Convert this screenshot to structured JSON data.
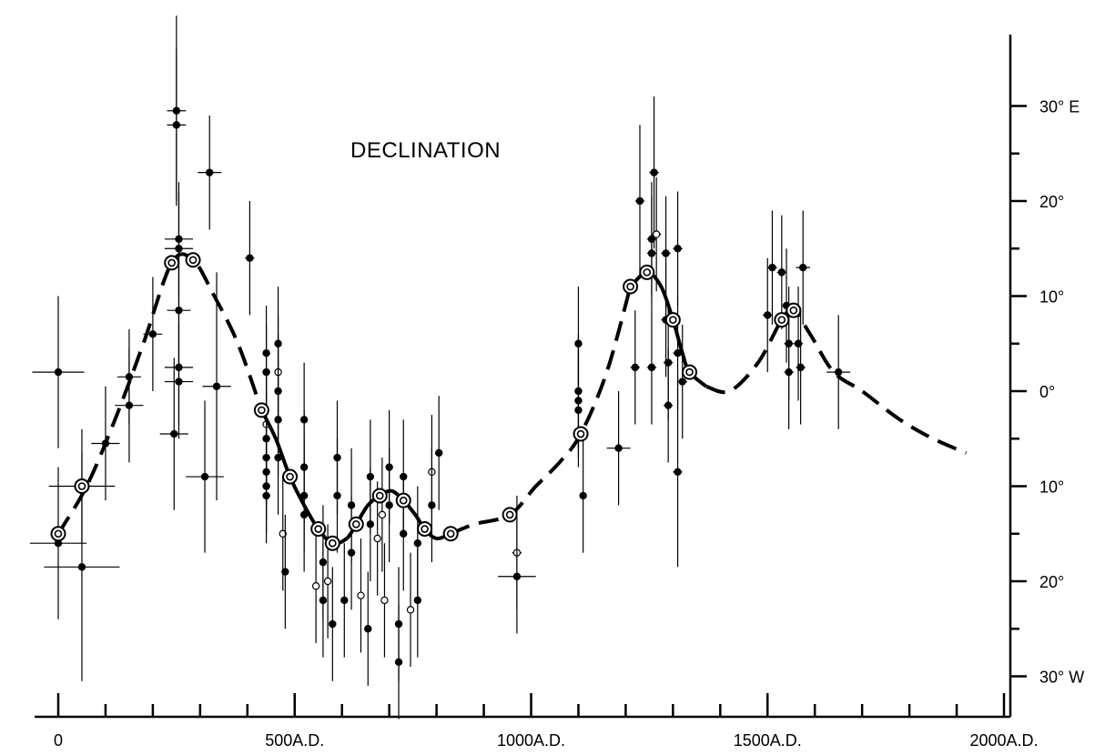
{
  "chart_data": {
    "type": "scatter",
    "title": "DECLINATION",
    "x_ticks": [
      {
        "value": 0,
        "label": "0"
      },
      {
        "value": 500,
        "label": "500A.D."
      },
      {
        "value": 1000,
        "label": "1000A.D."
      },
      {
        "value": 1500,
        "label": "1500A.D."
      },
      {
        "value": 2000,
        "label": "2000A.D."
      }
    ],
    "y_ticks": [
      {
        "value": 30,
        "label": "30° E"
      },
      {
        "value": 20,
        "label": "20°"
      },
      {
        "value": 10,
        "label": "10°"
      },
      {
        "value": 0,
        "label": "0°"
      },
      {
        "value": -10,
        "label": "10°"
      },
      {
        "value": -20,
        "label": "20°"
      },
      {
        "value": -30,
        "label": "30° W"
      }
    ],
    "xlim": [
      0,
      2000
    ],
    "ylim": [
      -32,
      40
    ],
    "axis_position": "right",
    "grid": false,
    "mean_points": [
      {
        "x": 0,
        "y": -15
      },
      {
        "x": 50,
        "y": -10
      },
      {
        "x": 240,
        "y": 13.5
      },
      {
        "x": 285,
        "y": 13.8
      },
      {
        "x": 430,
        "y": -2
      },
      {
        "x": 490,
        "y": -9
      },
      {
        "x": 550,
        "y": -14.5
      },
      {
        "x": 580,
        "y": -16
      },
      {
        "x": 630,
        "y": -14
      },
      {
        "x": 680,
        "y": -11
      },
      {
        "x": 730,
        "y": -11.5
      },
      {
        "x": 775,
        "y": -14.5
      },
      {
        "x": 830,
        "y": -15
      },
      {
        "x": 955,
        "y": -13
      },
      {
        "x": 1105,
        "y": -4.5
      },
      {
        "x": 1210,
        "y": 11
      },
      {
        "x": 1245,
        "y": 12.5
      },
      {
        "x": 1300,
        "y": 7.5
      },
      {
        "x": 1335,
        "y": 2
      },
      {
        "x": 1530,
        "y": 7.5
      },
      {
        "x": 1555,
        "y": 8.5
      }
    ],
    "curve_segments": [
      {
        "style": "dashed",
        "points": [
          [
            0,
            -15
          ],
          [
            60,
            -10
          ],
          [
            120,
            -3
          ],
          [
            180,
            5
          ],
          [
            240,
            13.5
          ],
          [
            285,
            13.8
          ],
          [
            330,
            10
          ],
          [
            380,
            5
          ],
          [
            430,
            -2
          ]
        ]
      },
      {
        "style": "solid",
        "points": [
          [
            430,
            -2
          ],
          [
            460,
            -5
          ],
          [
            490,
            -9
          ],
          [
            520,
            -12
          ],
          [
            550,
            -14.5
          ],
          [
            580,
            -16
          ],
          [
            610,
            -15.5
          ],
          [
            630,
            -14
          ],
          [
            655,
            -12
          ],
          [
            680,
            -11
          ],
          [
            705,
            -10.5
          ],
          [
            730,
            -11.5
          ],
          [
            755,
            -13
          ],
          [
            775,
            -14.5
          ],
          [
            800,
            -15.5
          ],
          [
            830,
            -15
          ]
        ]
      },
      {
        "style": "dashed",
        "points": [
          [
            830,
            -15
          ],
          [
            880,
            -14
          ],
          [
            955,
            -13
          ],
          [
            1010,
            -10
          ],
          [
            1060,
            -7.5
          ],
          [
            1105,
            -4.5
          ],
          [
            1160,
            2
          ],
          [
            1210,
            11
          ]
        ]
      },
      {
        "style": "solid",
        "points": [
          [
            1210,
            11
          ],
          [
            1245,
            12.5
          ],
          [
            1275,
            11
          ],
          [
            1300,
            7.5
          ],
          [
            1320,
            4
          ],
          [
            1335,
            2
          ],
          [
            1370,
            0.5
          ]
        ]
      },
      {
        "style": "dashed",
        "points": [
          [
            1370,
            0.5
          ],
          [
            1420,
            0
          ],
          [
            1480,
            3
          ],
          [
            1530,
            7.5
          ],
          [
            1555,
            8.5
          ],
          [
            1590,
            6
          ],
          [
            1640,
            2
          ],
          [
            1700,
            0
          ],
          [
            1780,
            -3
          ],
          [
            1850,
            -5
          ],
          [
            1920,
            -6.5
          ]
        ]
      }
    ],
    "observations": [
      {
        "x": 0,
        "y": 2,
        "ex": 55,
        "ey": 8,
        "open": false
      },
      {
        "x": 0,
        "y": -16,
        "ex": 60,
        "ey": 8,
        "open": false
      },
      {
        "x": 50,
        "y": -18.5,
        "ex": 80,
        "ey": 12,
        "open": false
      },
      {
        "x": 50,
        "y": -10,
        "ex": 70,
        "ey": 6,
        "open": false
      },
      {
        "x": 100,
        "y": -5.5,
        "ex": 30,
        "ey": 6,
        "open": false
      },
      {
        "x": 150,
        "y": -1.5,
        "ex": 30,
        "ey": 6,
        "open": false
      },
      {
        "x": 150,
        "y": 1.5,
        "ex": 25,
        "ey": 5,
        "open": false
      },
      {
        "x": 200,
        "y": 6,
        "ex": 20,
        "ey": 6,
        "open": false
      },
      {
        "x": 250,
        "y": 29.5,
        "ex": 20,
        "ey": 10,
        "open": false
      },
      {
        "x": 250,
        "y": 28,
        "ex": 20,
        "ey": 8,
        "open": false
      },
      {
        "x": 255,
        "y": 16,
        "ex": 30,
        "ey": 6,
        "open": false
      },
      {
        "x": 255,
        "y": 15,
        "ex": 30,
        "ey": 6,
        "open": false
      },
      {
        "x": 255,
        "y": 8.5,
        "ex": 25,
        "ey": 6,
        "open": false
      },
      {
        "x": 255,
        "y": 2.5,
        "ex": 30,
        "ey": 6,
        "open": false
      },
      {
        "x": 255,
        "y": 1,
        "ex": 30,
        "ey": 6,
        "open": false
      },
      {
        "x": 245,
        "y": -4.5,
        "ex": 30,
        "ey": 8,
        "open": false
      },
      {
        "x": 320,
        "y": 23,
        "ex": 25,
        "ey": 6,
        "open": false
      },
      {
        "x": 335,
        "y": 0.5,
        "ex": 30,
        "ey": 12,
        "open": false
      },
      {
        "x": 310,
        "y": -9,
        "ex": 40,
        "ey": 8,
        "open": false
      },
      {
        "x": 405,
        "y": 14,
        "ex": 10,
        "ey": 6,
        "open": false
      },
      {
        "x": 440,
        "y": 4,
        "ex": 8,
        "ey": 5,
        "open": false
      },
      {
        "x": 440,
        "y": 2,
        "ex": 8,
        "ey": 5,
        "open": false
      },
      {
        "x": 440,
        "y": -3.5,
        "ex": 8,
        "ey": 5,
        "open": true
      },
      {
        "x": 440,
        "y": -5,
        "ex": 8,
        "ey": 5,
        "open": false
      },
      {
        "x": 440,
        "y": -7,
        "ex": 8,
        "ey": 5,
        "open": false
      },
      {
        "x": 440,
        "y": -8.5,
        "ex": 8,
        "ey": 5,
        "open": false
      },
      {
        "x": 440,
        "y": -10,
        "ex": 8,
        "ey": 5,
        "open": false
      },
      {
        "x": 440,
        "y": -11,
        "ex": 8,
        "ey": 5,
        "open": false
      },
      {
        "x": 465,
        "y": 5,
        "ex": 6,
        "ey": 6,
        "open": false
      },
      {
        "x": 465,
        "y": 2,
        "ex": 6,
        "ey": 6,
        "open": true
      },
      {
        "x": 465,
        "y": 0,
        "ex": 6,
        "ey": 6,
        "open": false
      },
      {
        "x": 465,
        "y": -3,
        "ex": 6,
        "ey": 6,
        "open": false
      },
      {
        "x": 465,
        "y": -7,
        "ex": 6,
        "ey": 6,
        "open": false
      },
      {
        "x": 475,
        "y": -15,
        "ex": 6,
        "ey": 6,
        "open": true
      },
      {
        "x": 480,
        "y": -19,
        "ex": 6,
        "ey": 6,
        "open": false
      },
      {
        "x": 520,
        "y": -3,
        "ex": 6,
        "ey": 6,
        "open": false
      },
      {
        "x": 520,
        "y": -8,
        "ex": 6,
        "ey": 6,
        "open": false
      },
      {
        "x": 520,
        "y": -11,
        "ex": 6,
        "ey": 6,
        "open": false
      },
      {
        "x": 520,
        "y": -13,
        "ex": 6,
        "ey": 6,
        "open": false
      },
      {
        "x": 545,
        "y": -20.5,
        "ex": 6,
        "ey": 6,
        "open": true
      },
      {
        "x": 560,
        "y": -18,
        "ex": 6,
        "ey": 6,
        "open": false
      },
      {
        "x": 560,
        "y": -22,
        "ex": 6,
        "ey": 6,
        "open": false
      },
      {
        "x": 570,
        "y": -20,
        "ex": 6,
        "ey": 6,
        "open": true
      },
      {
        "x": 580,
        "y": -24.5,
        "ex": 6,
        "ey": 6,
        "open": false
      },
      {
        "x": 590,
        "y": -7,
        "ex": 6,
        "ey": 6,
        "open": false
      },
      {
        "x": 590,
        "y": -11,
        "ex": 6,
        "ey": 6,
        "open": false
      },
      {
        "x": 605,
        "y": -22,
        "ex": 6,
        "ey": 6,
        "open": false
      },
      {
        "x": 620,
        "y": -12,
        "ex": 6,
        "ey": 6,
        "open": false
      },
      {
        "x": 620,
        "y": -17,
        "ex": 6,
        "ey": 6,
        "open": false
      },
      {
        "x": 640,
        "y": -21.5,
        "ex": 6,
        "ey": 6,
        "open": true
      },
      {
        "x": 655,
        "y": -25,
        "ex": 6,
        "ey": 6,
        "open": false
      },
      {
        "x": 660,
        "y": -9,
        "ex": 6,
        "ey": 6,
        "open": false
      },
      {
        "x": 660,
        "y": -14,
        "ex": 6,
        "ey": 6,
        "open": false
      },
      {
        "x": 675,
        "y": -15.5,
        "ex": 6,
        "ey": 6,
        "open": true
      },
      {
        "x": 685,
        "y": -13,
        "ex": 6,
        "ey": 6,
        "open": true
      },
      {
        "x": 690,
        "y": -22,
        "ex": 6,
        "ey": 6,
        "open": true
      },
      {
        "x": 700,
        "y": -8,
        "ex": 6,
        "ey": 6,
        "open": false
      },
      {
        "x": 700,
        "y": -12,
        "ex": 6,
        "ey": 6,
        "open": false
      },
      {
        "x": 720,
        "y": -24.5,
        "ex": 6,
        "ey": 6,
        "open": false
      },
      {
        "x": 720,
        "y": -28.5,
        "ex": 6,
        "ey": 6,
        "open": false
      },
      {
        "x": 730,
        "y": -9,
        "ex": 6,
        "ey": 6,
        "open": false
      },
      {
        "x": 730,
        "y": -15,
        "ex": 6,
        "ey": 6,
        "open": false
      },
      {
        "x": 745,
        "y": -23,
        "ex": 6,
        "ey": 6,
        "open": true
      },
      {
        "x": 760,
        "y": -16,
        "ex": 6,
        "ey": 6,
        "open": false
      },
      {
        "x": 760,
        "y": -22,
        "ex": 6,
        "ey": 6,
        "open": false
      },
      {
        "x": 790,
        "y": -8.5,
        "ex": 6,
        "ey": 6,
        "open": true
      },
      {
        "x": 790,
        "y": -12,
        "ex": 6,
        "ey": 6,
        "open": false
      },
      {
        "x": 805,
        "y": -6.5,
        "ex": 6,
        "ey": 6,
        "open": false
      },
      {
        "x": 970,
        "y": -17,
        "ex": 10,
        "ey": 6,
        "open": true
      },
      {
        "x": 970,
        "y": -19.5,
        "ex": 40,
        "ey": 6,
        "open": false
      },
      {
        "x": 1100,
        "y": 5,
        "ex": 6,
        "ey": 6,
        "open": false
      },
      {
        "x": 1100,
        "y": 0,
        "ex": 6,
        "ey": 6,
        "open": false
      },
      {
        "x": 1100,
        "y": -1,
        "ex": 6,
        "ey": 6,
        "open": false
      },
      {
        "x": 1100,
        "y": -2,
        "ex": 6,
        "ey": 6,
        "open": false
      },
      {
        "x": 1110,
        "y": -11,
        "ex": 6,
        "ey": 6,
        "open": false
      },
      {
        "x": 1185,
        "y": -6,
        "ex": 25,
        "ey": 6,
        "open": false
      },
      {
        "x": 1220,
        "y": 2.5,
        "ex": 10,
        "ey": 6,
        "open": false
      },
      {
        "x": 1230,
        "y": 20,
        "ex": 10,
        "ey": 8,
        "open": false
      },
      {
        "x": 1260,
        "y": 23,
        "ex": 10,
        "ey": 8,
        "open": false
      },
      {
        "x": 1265,
        "y": 16.5,
        "ex": 10,
        "ey": 6,
        "open": true
      },
      {
        "x": 1255,
        "y": 16,
        "ex": 10,
        "ey": 6,
        "open": false
      },
      {
        "x": 1255,
        "y": 14.5,
        "ex": 10,
        "ey": 6,
        "open": false
      },
      {
        "x": 1255,
        "y": 2.5,
        "ex": 10,
        "ey": 6,
        "open": false
      },
      {
        "x": 1285,
        "y": 14.5,
        "ex": 10,
        "ey": 6,
        "open": false
      },
      {
        "x": 1285,
        "y": 7.5,
        "ex": 10,
        "ey": 6,
        "open": false
      },
      {
        "x": 1290,
        "y": 3,
        "ex": 10,
        "ey": 6,
        "open": false
      },
      {
        "x": 1290,
        "y": -1.5,
        "ex": 10,
        "ey": 6,
        "open": false
      },
      {
        "x": 1310,
        "y": 15,
        "ex": 10,
        "ey": 6,
        "open": false
      },
      {
        "x": 1310,
        "y": 4,
        "ex": 10,
        "ey": 6,
        "open": false
      },
      {
        "x": 1310,
        "y": -8.5,
        "ex": 10,
        "ey": 10,
        "open": false
      },
      {
        "x": 1320,
        "y": 1,
        "ex": 10,
        "ey": 6,
        "open": false
      },
      {
        "x": 1500,
        "y": 8,
        "ex": 10,
        "ey": 6,
        "open": false
      },
      {
        "x": 1510,
        "y": 13,
        "ex": 10,
        "ey": 6,
        "open": false
      },
      {
        "x": 1530,
        "y": 12.5,
        "ex": 10,
        "ey": 6,
        "open": false
      },
      {
        "x": 1540,
        "y": 9,
        "ex": 10,
        "ey": 6,
        "open": false
      },
      {
        "x": 1545,
        "y": 5,
        "ex": 10,
        "ey": 6,
        "open": false
      },
      {
        "x": 1545,
        "y": 2,
        "ex": 10,
        "ey": 6,
        "open": false
      },
      {
        "x": 1565,
        "y": 5,
        "ex": 10,
        "ey": 6,
        "open": false
      },
      {
        "x": 1570,
        "y": 2.5,
        "ex": 10,
        "ey": 6,
        "open": false
      },
      {
        "x": 1575,
        "y": 13,
        "ex": 15,
        "ey": 6,
        "open": false
      },
      {
        "x": 1650,
        "y": 2,
        "ex": 25,
        "ey": 6,
        "open": false
      }
    ]
  }
}
